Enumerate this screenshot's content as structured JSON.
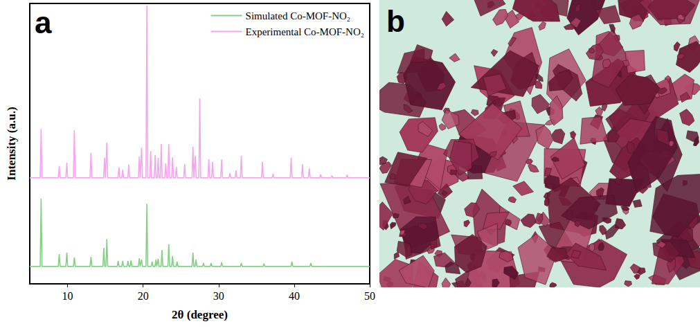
{
  "chart_data": {
    "type": "line",
    "panel_label": "a",
    "x_label": "2θ (degree)",
    "y_label": "Intensity (a.u.)",
    "xlim": [
      5,
      50
    ],
    "xticks": [
      10,
      20,
      30,
      40,
      50
    ],
    "ylim": [
      0,
      100
    ],
    "tick_labels": "x",
    "grid": false,
    "legend": "upper right",
    "series": [
      {
        "name": "Simulated Co-MOF-NO₂",
        "color": "#86cf86",
        "x": [
          5,
          6.38,
          6.5,
          6.62,
          8.78,
          8.9,
          9.02,
          9.78,
          9.9,
          10.02,
          10.78,
          10.9,
          11.02,
          12.98,
          13.1,
          13.22,
          14.68,
          14.8,
          14.92,
          15.08,
          15.2,
          15.32,
          16.58,
          16.7,
          16.82,
          17.18,
          17.3,
          17.42,
          17.88,
          18.0,
          18.12,
          18.28,
          18.4,
          18.52,
          19.38,
          19.5,
          19.62,
          19.68,
          19.8,
          19.92,
          20.38,
          20.5,
          20.62,
          21.08,
          21.2,
          21.32,
          21.58,
          21.7,
          21.82,
          21.88,
          22.0,
          22.12,
          22.38,
          22.5,
          22.62,
          23.28,
          23.4,
          23.52,
          23.78,
          23.9,
          24.02,
          24.38,
          24.5,
          24.62,
          26.48,
          26.6,
          26.72,
          26.88,
          27.0,
          27.12,
          27.88,
          28.0,
          28.12,
          28.88,
          29.0,
          29.12,
          30.28,
          30.4,
          30.52,
          32.88,
          33.0,
          33.12,
          35.88,
          36.0,
          36.12,
          39.58,
          39.7,
          39.82,
          42.08,
          42.2,
          42.32,
          50
        ],
        "values": [
          6.2,
          6.2,
          30.4,
          6.2,
          6.2,
          10.6,
          6.2,
          6.2,
          11.1,
          6.2,
          6.2,
          9.4,
          6.2,
          6.2,
          9.6,
          6.2,
          6.2,
          12.8,
          6.2,
          6.2,
          16.0,
          6.2,
          6.2,
          8.2,
          6.2,
          6.2,
          8.2,
          6.2,
          6.2,
          8.2,
          6.2,
          6.2,
          8.4,
          6.2,
          6.2,
          9.1,
          6.2,
          6.2,
          8.6,
          6.2,
          6.2,
          28.6,
          6.2,
          6.2,
          7.9,
          6.2,
          6.2,
          8.6,
          6.2,
          6.2,
          8.9,
          6.2,
          6.2,
          12.1,
          6.2,
          6.2,
          14.1,
          6.2,
          6.2,
          9.9,
          6.2,
          6.2,
          7.9,
          6.2,
          6.2,
          11.1,
          6.2,
          6.2,
          8.6,
          6.2,
          6.2,
          7.4,
          6.2,
          6.2,
          7.4,
          6.2,
          6.2,
          7.7,
          6.2,
          6.2,
          7.4,
          6.2,
          6.2,
          7.2,
          6.2,
          6.2,
          7.9,
          6.2,
          6.2,
          7.4,
          6.2,
          6.2
        ]
      },
      {
        "name": "Experimental Co-MOF-NO₂",
        "color": "#f5a6ee",
        "x": [
          5,
          6.38,
          6.5,
          6.62,
          8.78,
          8.9,
          9.02,
          9.78,
          9.9,
          10.02,
          10.78,
          10.9,
          11.02,
          12.98,
          13.1,
          13.22,
          14.78,
          14.9,
          15.02,
          15.08,
          15.2,
          15.32,
          16.68,
          16.8,
          16.92,
          17.18,
          17.3,
          17.42,
          17.98,
          18.1,
          18.22,
          19.38,
          19.5,
          19.62,
          19.68,
          19.8,
          19.92,
          20.38,
          20.5,
          20.62,
          20.88,
          21.0,
          21.12,
          21.48,
          21.6,
          21.72,
          21.88,
          22.0,
          22.12,
          22.28,
          22.4,
          22.52,
          22.88,
          23.0,
          23.12,
          23.28,
          23.4,
          23.52,
          23.78,
          23.9,
          24.02,
          24.28,
          24.4,
          24.52,
          25.38,
          25.5,
          25.62,
          26.48,
          26.6,
          26.72,
          26.78,
          26.9,
          27.02,
          27.38,
          27.5,
          27.62,
          28.58,
          28.7,
          28.82,
          29.08,
          29.2,
          29.32,
          30.28,
          30.4,
          30.52,
          31.38,
          31.5,
          31.62,
          32.18,
          32.3,
          32.42,
          32.88,
          33.0,
          33.12,
          35.68,
          35.8,
          35.92,
          37.08,
          37.2,
          37.32,
          39.48,
          39.6,
          39.72,
          40.98,
          41.1,
          41.22,
          41.88,
          42.0,
          42.12,
          43.38,
          43.5,
          43.62,
          44.88,
          45.0,
          45.12,
          46.88,
          47.0,
          47.12,
          50
        ],
        "values": [
          37.8,
          37.8,
          55.3,
          37.8,
          37.8,
          42.0,
          37.8,
          37.8,
          43.2,
          37.8,
          37.8,
          54.8,
          37.8,
          37.8,
          46.7,
          37.8,
          37.8,
          45.0,
          37.8,
          37.8,
          50.4,
          37.8,
          37.8,
          41.5,
          37.8,
          37.8,
          40.7,
          37.8,
          37.8,
          42.5,
          37.8,
          37.8,
          45.4,
          37.8,
          37.8,
          48.6,
          37.8,
          37.8,
          99.3,
          37.8,
          37.8,
          47.4,
          37.8,
          37.8,
          45.9,
          37.8,
          37.8,
          44.9,
          37.8,
          37.8,
          49.9,
          37.8,
          37.8,
          43.0,
          37.8,
          37.8,
          49.9,
          37.8,
          37.8,
          45.2,
          37.8,
          37.8,
          41.7,
          37.8,
          37.8,
          42.7,
          37.8,
          37.8,
          48.9,
          37.8,
          37.8,
          45.7,
          37.8,
          37.8,
          66.2,
          37.8,
          37.8,
          44.4,
          37.8,
          37.8,
          43.5,
          37.8,
          37.8,
          44.4,
          37.8,
          37.8,
          39.5,
          37.8,
          37.8,
          40.5,
          37.8,
          37.8,
          45.7,
          37.8,
          37.8,
          43.5,
          37.8,
          37.8,
          39.3,
          37.8,
          37.8,
          45.0,
          37.8,
          37.8,
          42.7,
          37.8,
          37.8,
          41.2,
          37.8,
          37.8,
          39.0,
          37.8,
          37.8,
          38.6,
          37.8,
          37.8,
          38.9,
          37.8,
          37.8
        ]
      }
    ]
  },
  "image_panel": {
    "label": "b"
  }
}
